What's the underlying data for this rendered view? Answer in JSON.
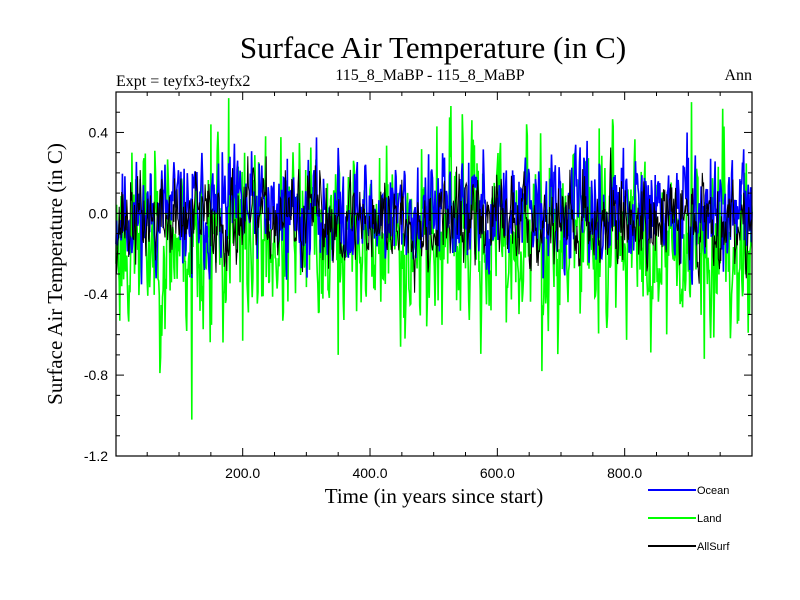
{
  "chart_data": {
    "type": "line",
    "title": "Surface Air Temperature (in C)",
    "subtitle_left": "Expt = teyfx3-teyfx2",
    "subtitle_center": "115_8_MaBP - 115_8_MaBP",
    "subtitle_right": "Ann",
    "xlabel": "Time (in years since start)",
    "ylabel": "Surface Air Temperature (in C)",
    "xlim": [
      1,
      1000
    ],
    "ylim": [
      -1.2,
      0.6
    ],
    "xticks": [
      200,
      400,
      600,
      800
    ],
    "xtick_labels": [
      "200.0",
      "400.0",
      "600.0",
      "800.0"
    ],
    "yticks": [
      -1.2,
      -0.8,
      -0.4,
      0.0,
      0.4
    ],
    "ytick_labels": [
      "-1.2",
      "-0.8",
      "-0.4",
      "0.0",
      "0.4"
    ],
    "reference_line": 0.0,
    "series": [
      {
        "name": "Ocean",
        "color": "#0000ff",
        "mean": 0.0,
        "amplitude": 0.12,
        "seed": 11,
        "extremes": [
          [
            180,
            0.28
          ],
          [
            270,
            0.27
          ],
          [
            120,
            -0.32
          ],
          [
            555,
            0.25
          ],
          [
            935,
            0.27
          ]
        ]
      },
      {
        "name": "Land",
        "color": "#00ff00",
        "mean": -0.12,
        "amplitude": 0.2,
        "seed": 23,
        "extremes": [
          [
            178,
            0.57
          ],
          [
            120,
            -1.02
          ],
          [
            70,
            -0.79
          ],
          [
            200,
            -0.63
          ],
          [
            350,
            -0.7
          ],
          [
            670,
            -0.78
          ],
          [
            545,
            0.49
          ],
          [
            905,
            0.55
          ],
          [
            150,
            0.44
          ],
          [
            505,
            0.43
          ],
          [
            760,
            0.42
          ],
          [
            925,
            -0.72
          ]
        ]
      },
      {
        "name": "AllSurf",
        "color": "#000000",
        "mean": -0.03,
        "amplitude": 0.1,
        "seed": 37,
        "extremes": [
          [
            120,
            -0.3
          ],
          [
            770,
            -0.18
          ]
        ]
      }
    ]
  }
}
